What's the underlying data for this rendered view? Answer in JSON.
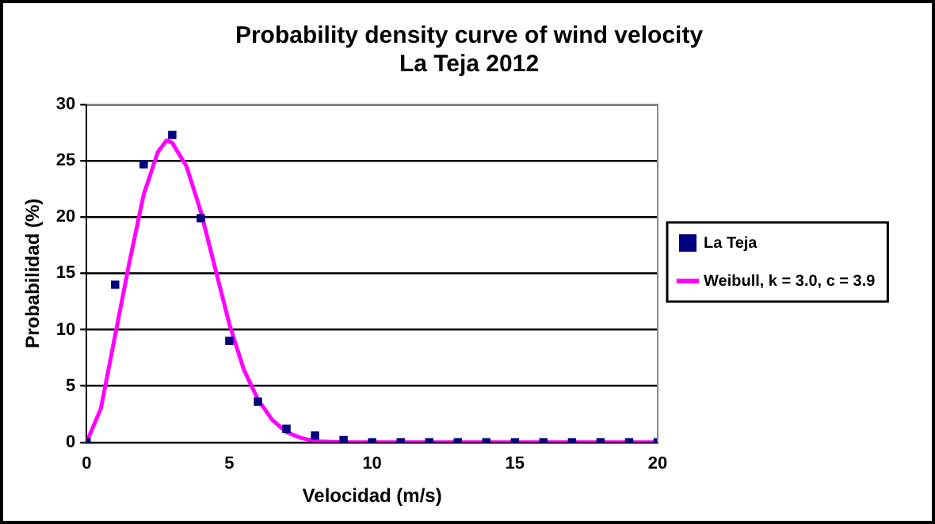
{
  "chart_data": {
    "type": "scatter",
    "title": "Probability density curve of wind velocity\nLa Teja 2012",
    "xlabel": "Velocidad (m/s)",
    "ylabel": "Probabilidad (%)",
    "xlim": [
      0,
      20
    ],
    "xticks": [
      0,
      5,
      10,
      15,
      20
    ],
    "ylim": [
      0,
      30
    ],
    "yticks": [
      0,
      5,
      10,
      15,
      20,
      25,
      30
    ],
    "grid": "y",
    "legend": "right",
    "marker": "square",
    "series": [
      {
        "name": "La Teja",
        "color": "#000080",
        "x": [
          0,
          1,
          2,
          3,
          4,
          5,
          6,
          7,
          8,
          9,
          10,
          11,
          12,
          13,
          14,
          15,
          16,
          17,
          18,
          19,
          20
        ],
        "values": [
          0,
          14,
          24.7,
          27.3,
          19.9,
          9,
          3.6,
          1.2,
          0.6,
          0.2,
          0,
          0,
          0,
          0,
          0,
          0,
          0,
          0,
          0,
          0,
          0
        ]
      },
      {
        "name": "Weibull, k = 3.0, c = 3.9",
        "type": "line",
        "marker": "none",
        "color": "#ff00ff",
        "x": [
          0,
          0.5,
          1,
          1.5,
          2,
          2.5,
          2.8,
          3,
          3.5,
          4,
          4.5,
          5,
          5.5,
          6,
          6.5,
          7,
          7.5,
          8,
          9,
          10,
          12,
          14,
          16,
          18,
          20
        ],
        "values": [
          0,
          3,
          9.5,
          16,
          22,
          25.8,
          26.8,
          26.6,
          24.5,
          20.5,
          15.5,
          10.5,
          6.5,
          3.8,
          2,
          0.9,
          0.4,
          0.1,
          0,
          0,
          0,
          0,
          0,
          0,
          0
        ]
      }
    ]
  }
}
